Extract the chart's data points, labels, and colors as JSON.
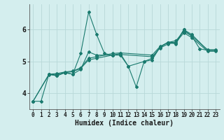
{
  "xlabel": "Humidex (Indice chaleur)",
  "background_color": "#d4eeee",
  "grid_color": "#b8d8d8",
  "line_color": "#1a7a6e",
  "xlim": [
    -0.5,
    23.5
  ],
  "ylim": [
    3.5,
    6.8
  ],
  "xticks": [
    0,
    1,
    2,
    3,
    4,
    5,
    6,
    7,
    8,
    9,
    10,
    11,
    12,
    13,
    14,
    15,
    16,
    17,
    18,
    19,
    20,
    21,
    22,
    23
  ],
  "yticks": [
    4,
    5,
    6
  ],
  "series": [
    {
      "x": [
        0,
        1,
        2,
        3,
        4,
        5,
        6,
        7,
        8,
        9,
        10,
        11,
        12,
        13,
        14,
        15,
        16,
        17,
        18,
        19,
        20,
        21,
        22,
        23
      ],
      "y": [
        3.75,
        3.75,
        4.6,
        4.55,
        4.65,
        4.6,
        5.25,
        6.55,
        5.85,
        5.25,
        5.2,
        5.25,
        4.85,
        4.2,
        5.0,
        5.05,
        5.45,
        5.6,
        5.55,
        6.0,
        5.8,
        5.4,
        5.35,
        5.35
      ]
    },
    {
      "x": [
        2,
        3,
        4,
        5,
        6,
        7,
        8,
        10,
        11,
        12,
        14,
        15,
        16,
        17,
        18,
        19,
        20,
        22,
        23
      ],
      "y": [
        4.6,
        4.55,
        4.65,
        4.6,
        4.75,
        5.3,
        5.2,
        5.2,
        5.2,
        4.85,
        5.0,
        5.1,
        5.45,
        5.6,
        5.6,
        6.0,
        5.85,
        5.35,
        5.35
      ]
    },
    {
      "x": [
        0,
        2,
        3,
        4,
        5,
        6,
        7,
        8,
        10,
        11,
        15,
        16,
        17,
        18,
        19,
        20,
        22,
        23
      ],
      "y": [
        3.75,
        4.58,
        4.6,
        4.65,
        4.68,
        4.78,
        5.05,
        5.1,
        5.2,
        5.22,
        5.15,
        5.42,
        5.55,
        5.6,
        5.9,
        5.75,
        5.32,
        5.32
      ]
    },
    {
      "x": [
        0,
        2,
        3,
        4,
        5,
        6,
        7,
        8,
        10,
        11,
        15,
        16,
        17,
        18,
        19,
        20,
        22,
        23
      ],
      "y": [
        3.75,
        4.6,
        4.62,
        4.67,
        4.7,
        4.8,
        5.1,
        5.15,
        5.25,
        5.27,
        5.2,
        5.47,
        5.6,
        5.65,
        5.95,
        5.8,
        5.37,
        5.37
      ]
    }
  ]
}
